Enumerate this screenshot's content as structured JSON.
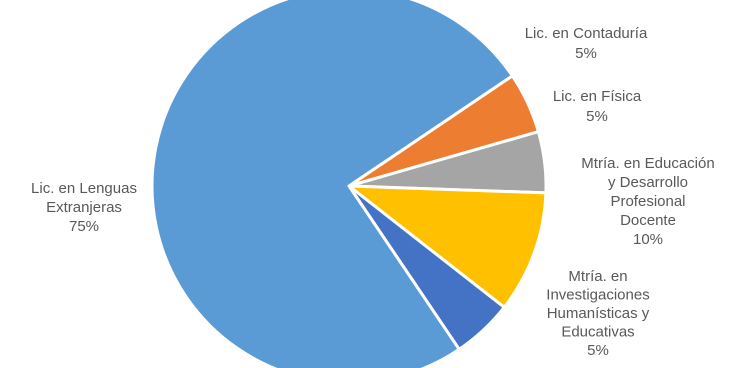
{
  "chart_data": {
    "type": "pie",
    "title": "",
    "start_angle_deg": -34,
    "direction": "clockwise",
    "slices": [
      {
        "name": "Lic. en Contaduría",
        "label_lines": [
          "Lic. en Contaduría",
          "5%"
        ],
        "value": 5,
        "color": "#ED7D31"
      },
      {
        "name": "Lic. en Física",
        "label_lines": [
          "Lic. en Física",
          "5%"
        ],
        "value": 5,
        "color": "#A5A5A5"
      },
      {
        "name": "Mtría. en Educación y Desarrollo Profesional Docente",
        "label_lines": [
          "Mtría. en Educación",
          "y Desarrollo",
          "Profesional",
          "Docente",
          "10%"
        ],
        "value": 10,
        "color": "#FFC000"
      },
      {
        "name": "Mtría. en Investigaciones Humanísticas y Educativas",
        "label_lines": [
          "Mtría. en",
          "Investigaciones",
          "Humanísticas  y",
          "Educativas",
          "5%"
        ],
        "value": 5,
        "color": "#4472C4"
      },
      {
        "name": "Lic. en Lenguas Extranjeras",
        "label_lines": [
          "Lic. en Lenguas",
          "Extranjeras",
          "75%"
        ],
        "value": 75,
        "color": "#5B9BD5"
      }
    ],
    "slice_border_color": "#ffffff"
  }
}
